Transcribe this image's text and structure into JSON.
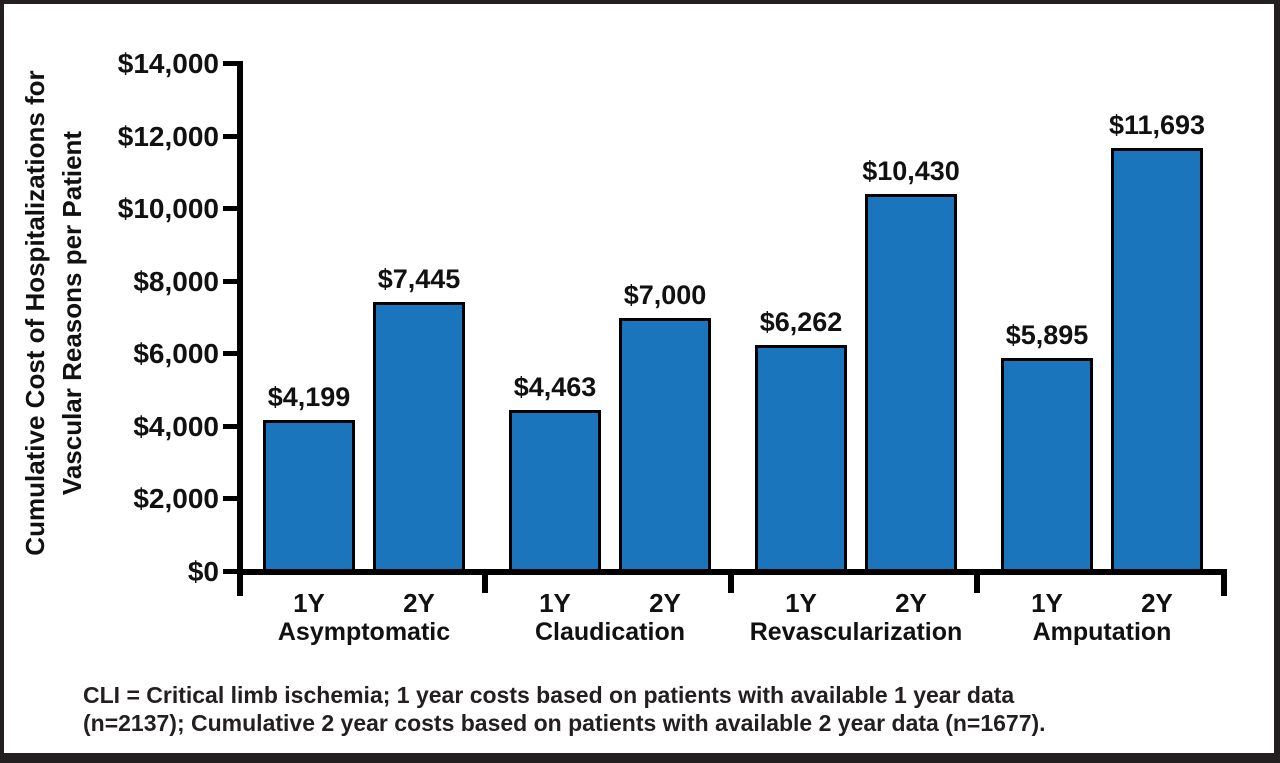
{
  "colors": {
    "bar_fill": "#1b75bc",
    "bar_border": "#000000",
    "axis": "#000000",
    "text": "#111111",
    "frame_border": "#231f20",
    "background": "#ffffff"
  },
  "chart_data": {
    "type": "bar",
    "title": "",
    "ylabel_lines": [
      "Cumulative Cost of Hospitalizations for",
      "Vascular Reasons per Patient"
    ],
    "xlabel": "",
    "y_axis": {
      "min": 0,
      "max": 14000,
      "tick_step": 2000,
      "tick_labels_bottom_up": [
        "$0",
        "$2,000",
        "$4,000",
        "$6,000",
        "$8,000",
        "$10,000",
        "$12,000",
        "$14,000"
      ]
    },
    "grid": false,
    "legend": "none",
    "groups": [
      {
        "label": "Asymptomatic",
        "bars": [
          {
            "period": "1Y",
            "value": 4199,
            "value_label": "$4,199"
          },
          {
            "period": "2Y",
            "value": 7445,
            "value_label": "$7,445"
          }
        ]
      },
      {
        "label": "Claudication",
        "bars": [
          {
            "period": "1Y",
            "value": 4463,
            "value_label": "$4,463"
          },
          {
            "period": "2Y",
            "value": 7000,
            "value_label": "$7,000"
          }
        ]
      },
      {
        "label": "Revascularization",
        "bars": [
          {
            "period": "1Y",
            "value": 6262,
            "value_label": "$6,262"
          },
          {
            "period": "2Y",
            "value": 10430,
            "value_label": "$10,430"
          }
        ]
      },
      {
        "label": "Amputation",
        "bars": [
          {
            "period": "1Y",
            "value": 5895,
            "value_label": "$5,895"
          },
          {
            "period": "2Y",
            "value": 11693,
            "value_label": "$11,693"
          }
        ]
      }
    ],
    "footnote_lines": [
      "CLI = Critical limb ischemia; 1 year costs based on patients with available 1 year data",
      "(n=2137); Cumulative 2 year costs based on patients with available 2 year data (n=1677)."
    ]
  }
}
